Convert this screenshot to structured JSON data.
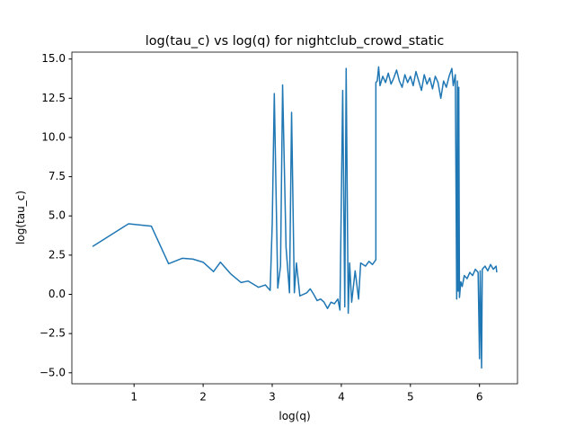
{
  "chart_data": {
    "type": "line",
    "title": "log(tau_c) vs log(q) for nightclub_crowd_static",
    "x_label": "log(q)",
    "y_label": "log(tau_c)",
    "xlim": [
      0.1,
      6.55
    ],
    "ylim": [
      -5.7,
      15.44
    ],
    "xticks": [
      1,
      2,
      3,
      4,
      5,
      6
    ],
    "yticks": [
      {
        "value": -5,
        "label": "−5.0"
      },
      {
        "value": -2.5,
        "label": "−2.5"
      },
      {
        "value": 0,
        "label": "0.0"
      },
      {
        "value": 2.5,
        "label": "2.5"
      },
      {
        "value": 5,
        "label": "5.0"
      },
      {
        "value": 7.5,
        "label": "7.5"
      },
      {
        "value": 10,
        "label": "10.0"
      },
      {
        "value": 12.5,
        "label": "12.5"
      },
      {
        "value": 15,
        "label": "15.0"
      }
    ],
    "series": [
      {
        "color": "#1f77b4",
        "x": [
          0.4,
          0.92,
          1.25,
          1.5,
          1.7,
          1.85,
          2.0,
          2.15,
          2.25,
          2.4,
          2.55,
          2.65,
          2.8,
          2.9,
          2.97,
          3.0,
          3.03,
          3.08,
          3.12,
          3.15,
          3.2,
          3.25,
          3.28,
          3.32,
          3.35,
          3.4,
          3.5,
          3.55,
          3.6,
          3.65,
          3.7,
          3.75,
          3.8,
          3.85,
          3.9,
          3.95,
          3.98,
          4.02,
          4.05,
          4.07,
          4.1,
          4.12,
          4.15,
          4.2,
          4.25,
          4.28,
          4.35,
          4.4,
          4.45,
          4.5,
          4.5,
          4.52,
          4.54,
          4.56,
          4.6,
          4.64,
          4.68,
          4.72,
          4.76,
          4.8,
          4.84,
          4.88,
          4.92,
          4.96,
          5.0,
          5.04,
          5.08,
          5.12,
          5.16,
          5.2,
          5.24,
          5.28,
          5.32,
          5.36,
          5.4,
          5.44,
          5.48,
          5.52,
          5.56,
          5.6,
          5.62,
          5.65,
          5.67,
          5.68,
          5.69,
          5.7,
          5.71,
          5.73,
          5.75,
          5.78,
          5.82,
          5.86,
          5.9,
          5.94,
          5.98,
          6.0,
          6.01,
          6.03,
          6.04,
          6.08,
          6.12,
          6.16,
          6.2,
          6.24,
          6.25
        ],
        "values": [
          3.05,
          4.5,
          4.35,
          1.95,
          2.3,
          2.25,
          2.05,
          1.45,
          2.05,
          1.3,
          0.75,
          0.85,
          0.45,
          0.6,
          0.25,
          4.5,
          12.8,
          0.4,
          1.8,
          13.35,
          3.0,
          0.1,
          11.6,
          0.1,
          2.0,
          -0.1,
          0.1,
          0.35,
          0.0,
          -0.4,
          -0.3,
          -0.5,
          -0.9,
          -0.5,
          -0.6,
          -0.3,
          -1.0,
          13.0,
          -0.8,
          14.4,
          -1.2,
          2.0,
          -0.5,
          1.5,
          -0.3,
          2.0,
          1.8,
          2.1,
          1.9,
          2.2,
          13.5,
          13.6,
          14.5,
          13.3,
          13.9,
          13.5,
          14.1,
          13.4,
          13.8,
          14.3,
          13.6,
          13.2,
          14.0,
          13.5,
          13.9,
          13.3,
          14.2,
          13.6,
          13.0,
          14.0,
          13.4,
          13.8,
          13.1,
          13.9,
          13.5,
          12.5,
          13.6,
          13.2,
          13.9,
          14.4,
          13.3,
          14.0,
          -0.3,
          13.6,
          0.2,
          13.2,
          -0.2,
          0.8,
          0.5,
          1.2,
          1.0,
          1.4,
          1.2,
          1.6,
          1.4,
          -4.1,
          1.5,
          -4.7,
          1.6,
          1.8,
          1.5,
          1.9,
          1.6,
          1.8,
          1.4
        ]
      }
    ]
  }
}
